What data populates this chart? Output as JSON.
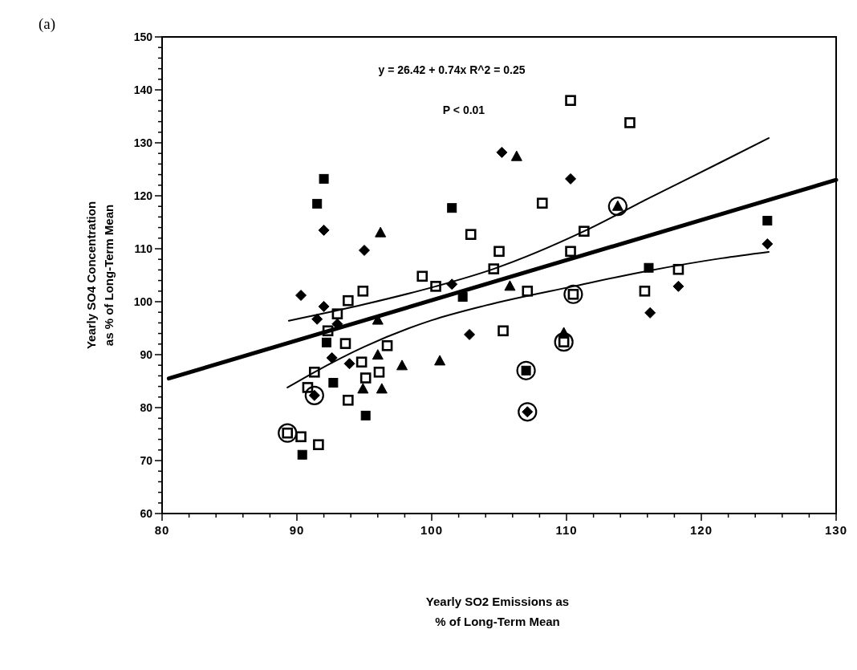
{
  "chart_data": {
    "type": "scatter",
    "xlabel": "Yearly SO2 Emissions as\n% of Long-Term Mean",
    "ylabel": "Yearly SO4 Concentration\nas % of Long-Term Mean",
    "annotations": [
      "(a)",
      "y = 26.42 + 0.74x   R^2 = 0.25",
      "P < 0.01"
    ],
    "xlim": [
      80,
      130
    ],
    "xticks": [
      80,
      {
        "value": 82,
        "label": null
      },
      {
        "value": 84,
        "label": null
      },
      {
        "value": 86,
        "label": null
      },
      {
        "value": 88,
        "label": null
      },
      90,
      {
        "value": 92,
        "label": null
      },
      {
        "value": 94,
        "label": null
      },
      {
        "value": 96,
        "label": null
      },
      {
        "value": 98,
        "label": null
      },
      100,
      {
        "value": 102,
        "label": null
      },
      {
        "value": 104,
        "label": null
      },
      {
        "value": 106,
        "label": null
      },
      {
        "value": 108,
        "label": null
      },
      110,
      {
        "value": 112,
        "label": null
      },
      {
        "value": 114,
        "label": null
      },
      {
        "value": 116,
        "label": null
      },
      {
        "value": 118,
        "label": null
      },
      120,
      {
        "value": 122,
        "label": null
      },
      {
        "value": 124,
        "label": null
      },
      {
        "value": 126,
        "label": null
      },
      {
        "value": 128,
        "label": null
      },
      130
    ],
    "ylim": [
      60,
      150
    ],
    "yticks": [
      60,
      {
        "value": 62,
        "label": null
      },
      {
        "value": 64,
        "label": null
      },
      {
        "value": 66,
        "label": null
      },
      {
        "value": 68,
        "label": null
      },
      70,
      {
        "value": 72,
        "label": null
      },
      {
        "value": 74,
        "label": null
      },
      {
        "value": 76,
        "label": null
      },
      {
        "value": 78,
        "label": null
      },
      80,
      {
        "value": 82,
        "label": null
      },
      {
        "value": 84,
        "label": null
      },
      {
        "value": 86,
        "label": null
      },
      {
        "value": 88,
        "label": null
      },
      90,
      {
        "value": 92,
        "label": null
      },
      {
        "value": 94,
        "label": null
      },
      {
        "value": 96,
        "label": null
      },
      {
        "value": 98,
        "label": null
      },
      100,
      {
        "value": 102,
        "label": null
      },
      {
        "value": 104,
        "label": null
      },
      {
        "value": 106,
        "label": null
      },
      {
        "value": 108,
        "label": null
      },
      110,
      {
        "value": 112,
        "label": null
      },
      {
        "value": 114,
        "label": null
      },
      {
        "value": 116,
        "label": null
      },
      {
        "value": 118,
        "label": null
      },
      120,
      {
        "value": 122,
        "label": null
      },
      {
        "value": 124,
        "label": null
      },
      {
        "value": 126,
        "label": null
      },
      {
        "value": 128,
        "label": null
      },
      130,
      {
        "value": 132,
        "label": null
      },
      {
        "value": 134,
        "label": null
      },
      {
        "value": 136,
        "label": null
      },
      {
        "value": 138,
        "label": null
      },
      140,
      {
        "value": 142,
        "label": null
      },
      {
        "value": 144,
        "label": null
      },
      {
        "value": 146,
        "label": null
      },
      {
        "value": 148,
        "label": null
      },
      150
    ],
    "grid": false,
    "series": [
      {
        "marker": "square",
        "color": "#000000",
        "x": [
          92.0,
          91.5,
          101.5,
          102.3,
          92.2,
          92.7,
          95.1,
          90.4,
          107.0,
          116.1,
          124.9
        ],
        "values": [
          123.2,
          118.5,
          117.7,
          100.9,
          92.3,
          84.7,
          78.5,
          71.1,
          87.0,
          106.4,
          115.3
        ]
      },
      {
        "marker": "square",
        "color": "#ffffff",
        "x": [
          110.3,
          114.7,
          108.2,
          111.3,
          105.0,
          110.3,
          104.6,
          107.1,
          110.5,
          118.3,
          115.8,
          105.3,
          109.8,
          102.9,
          99.3,
          100.3,
          94.9,
          93.8,
          93.0,
          92.3,
          93.6,
          96.7,
          94.8,
          91.3,
          96.1,
          95.1,
          90.8,
          93.8,
          89.3,
          90.3,
          91.6
        ],
        "values": [
          138.0,
          133.8,
          118.6,
          113.3,
          109.5,
          109.5,
          106.2,
          102.0,
          101.4,
          106.1,
          102.0,
          94.5,
          92.4,
          112.7,
          104.8,
          102.9,
          102.0,
          100.2,
          97.7,
          94.5,
          92.1,
          91.7,
          88.6,
          86.7,
          86.7,
          85.6,
          83.8,
          81.4,
          75.2,
          74.5,
          73.0
        ]
      },
      {
        "marker": "diamond",
        "color": "#000000",
        "x": [
          105.2,
          110.3,
          118.3,
          116.2,
          107.1,
          124.9,
          92.0,
          95.0,
          101.5,
          90.3,
          92.0,
          91.5,
          93.0,
          102.8,
          92.6,
          93.9,
          91.3
        ],
        "values": [
          128.2,
          123.2,
          102.9,
          97.9,
          79.2,
          110.9,
          113.5,
          109.7,
          103.3,
          101.2,
          99.1,
          96.7,
          95.8,
          93.8,
          89.4,
          88.3,
          82.3
        ]
      },
      {
        "marker": "triangle",
        "color": "#000000",
        "x": [
          106.3,
          113.8,
          105.8,
          109.8,
          96.2,
          96.0,
          96.0,
          97.8,
          100.6,
          94.9,
          96.3
        ],
        "values": [
          127.4,
          118.0,
          102.9,
          94.1,
          113.0,
          96.5,
          89.9,
          87.9,
          88.8,
          83.5,
          83.5
        ]
      },
      {
        "color": "#000000",
        "x": [
          113.8,
          110.5,
          109.8,
          107.0,
          107.1,
          91.3,
          89.3
        ],
        "values": [
          118.0,
          101.4,
          92.4,
          87.0,
          79.2,
          82.3,
          75.2
        ]
      },
      {
        "type": "line",
        "marker": "none",
        "line_style": "solid",
        "color": "#000000",
        "x": [
          80.5,
          130
        ],
        "values": [
          85.5,
          123
        ]
      },
      {
        "type": "line",
        "marker": "none",
        "line_style": "solid",
        "color": "#000000",
        "x": [
          89.4,
          95,
          100.3,
          104.6,
          111.3,
          116,
          121.5,
          125
        ],
        "values": [
          96.4,
          99.5,
          102.9,
          106.2,
          113.3,
          119.4,
          126.4,
          130.9
        ]
      },
      {
        "type": "line",
        "marker": "none",
        "line_style": "solid",
        "color": "#000000",
        "x": [
          89.3,
          91.3,
          95,
          100,
          104,
          110.5,
          116,
          121.5,
          125
        ],
        "values": [
          83.8,
          86.7,
          91.5,
          96.5,
          99.3,
          102.9,
          105.8,
          108.2,
          109.4
        ]
      }
    ]
  }
}
